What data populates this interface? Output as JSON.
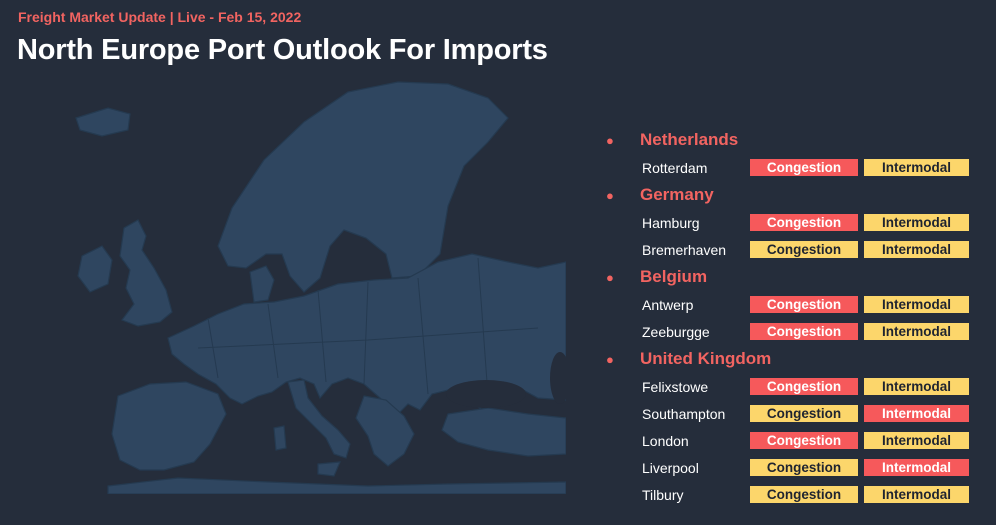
{
  "header": {
    "subtitle": "Freight Market Update | Live - Feb 15, 2022",
    "title": "North Europe Port Outlook For Imports"
  },
  "colors": {
    "background": "#252d3b",
    "map_land": "#2f4660",
    "accent_red": "#f6595b",
    "accent_yellow": "#fcd66b"
  },
  "countries": [
    {
      "name": "Netherlands",
      "ports": [
        {
          "name": "Rotterdam",
          "congestion": {
            "label": "Congestion",
            "status": "red"
          },
          "intermodal": {
            "label": "Intermodal",
            "status": "yellow"
          }
        }
      ]
    },
    {
      "name": "Germany",
      "ports": [
        {
          "name": "Hamburg",
          "congestion": {
            "label": "Congestion",
            "status": "red"
          },
          "intermodal": {
            "label": "Intermodal",
            "status": "yellow"
          }
        },
        {
          "name": "Bremerhaven",
          "congestion": {
            "label": "Congestion",
            "status": "yellow"
          },
          "intermodal": {
            "label": "Intermodal",
            "status": "yellow"
          }
        }
      ]
    },
    {
      "name": "Belgium",
      "ports": [
        {
          "name": "Antwerp",
          "congestion": {
            "label": "Congestion",
            "status": "red"
          },
          "intermodal": {
            "label": "Intermodal",
            "status": "yellow"
          }
        },
        {
          "name": "Zeeburgge",
          "congestion": {
            "label": "Congestion",
            "status": "red"
          },
          "intermodal": {
            "label": "Intermodal",
            "status": "yellow"
          }
        }
      ]
    },
    {
      "name": "United Kingdom",
      "ports": [
        {
          "name": "Felixstowe",
          "congestion": {
            "label": "Congestion",
            "status": "red"
          },
          "intermodal": {
            "label": "Intermodal",
            "status": "yellow"
          }
        },
        {
          "name": "Southampton",
          "congestion": {
            "label": "Congestion",
            "status": "yellow"
          },
          "intermodal": {
            "label": "Intermodal",
            "status": "red"
          }
        },
        {
          "name": "London",
          "congestion": {
            "label": "Congestion",
            "status": "red"
          },
          "intermodal": {
            "label": "Intermodal",
            "status": "yellow"
          }
        },
        {
          "name": "Liverpool",
          "congestion": {
            "label": "Congestion",
            "status": "yellow"
          },
          "intermodal": {
            "label": "Intermodal",
            "status": "red"
          }
        },
        {
          "name": "Tilbury",
          "congestion": {
            "label": "Congestion",
            "status": "yellow"
          },
          "intermodal": {
            "label": "Intermodal",
            "status": "yellow"
          }
        }
      ]
    }
  ]
}
